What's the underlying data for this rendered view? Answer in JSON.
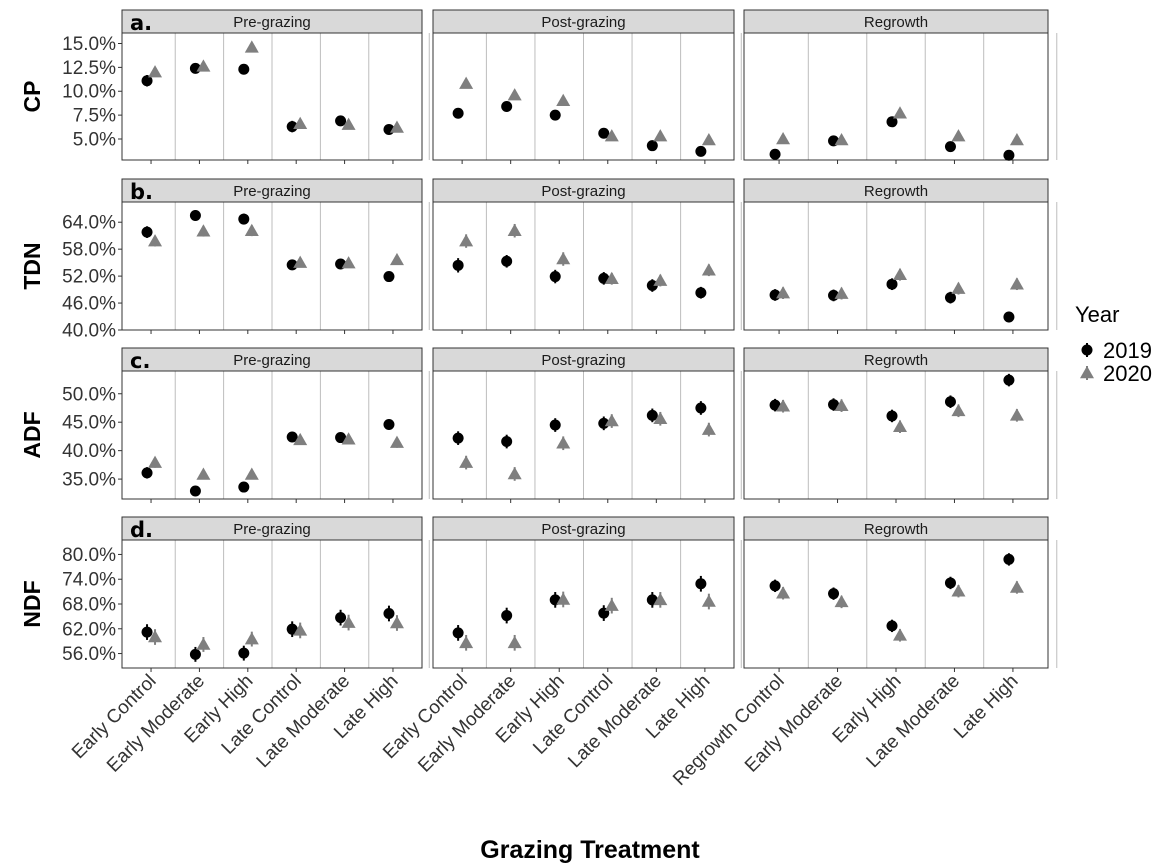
{
  "chart_data": {
    "type": "scatter",
    "xlabel": "Grazing Treatment",
    "legend": {
      "title": "Year",
      "position": "right",
      "series": [
        {
          "name": "2019",
          "color": "#000000",
          "marker": "circle"
        },
        {
          "name": "2020",
          "color": "#7f7f7f",
          "marker": "triangle"
        }
      ]
    },
    "facets": [
      "Pre-grazing",
      "Post-grazing",
      "Regrowth"
    ],
    "categories": [
      [
        "Early Control",
        "Early Moderate",
        "Early High",
        "Late Control",
        "Late Moderate",
        "Late High"
      ],
      [
        "Early Control",
        "Early Moderate",
        "Early High",
        "Late Control",
        "Late Moderate",
        "Late High"
      ],
      [
        "Regrowth Control",
        "Early Moderate",
        "Early High",
        "Late Moderate",
        "Late High"
      ]
    ],
    "grid": "vertical lines between categories",
    "rows": [
      {
        "tag": "a.",
        "ylabel": "CP",
        "ylim": [
          2.8,
          16.1
        ],
        "yticks": [
          5.0,
          7.5,
          10.0,
          12.5,
          15.0
        ],
        "ytick_labels": [
          "5.0%",
          "7.5%",
          "10.0%",
          "12.5%",
          "15.0%"
        ],
        "values": {
          "2019": [
            [
              11.1,
              12.4,
              12.3,
              6.3,
              6.9,
              6.0
            ],
            [
              7.7,
              8.4,
              7.5,
              5.6,
              4.3,
              3.7
            ],
            [
              3.4,
              4.8,
              6.8,
              4.2,
              3.3
            ]
          ],
          "2020": [
            [
              12.0,
              12.6,
              14.6,
              6.6,
              6.5,
              6.2
            ],
            [
              10.8,
              9.6,
              9.0,
              5.3,
              5.3,
              4.9
            ],
            [
              5.0,
              4.9,
              7.7,
              5.3,
              4.9
            ]
          ]
        },
        "errors": {
          "2019": [
            [
              0.6,
              0.4,
              0.5,
              0.6,
              0.5,
              0.5
            ],
            [
              0.5,
              0.5,
              0.5,
              0.5,
              0.5,
              0.5
            ],
            [
              0.3,
              0.3,
              0.3,
              0.3,
              0.3
            ]
          ],
          "2020": [
            [
              0.5,
              0.4,
              0.5,
              0.5,
              0.5,
              0.5
            ],
            [
              0.5,
              0.5,
              0.5,
              0.5,
              0.5,
              0.5
            ],
            [
              0.3,
              0.3,
              0.3,
              0.3,
              0.3
            ]
          ]
        }
      },
      {
        "tag": "b.",
        "ylabel": "TDN",
        "ylim": [
          40.0,
          68.5
        ],
        "yticks": [
          40.0,
          46.0,
          52.0,
          58.0,
          64.0
        ],
        "ytick_labels": [
          "40.0%",
          "46.0%",
          "52.0%",
          "58.0%",
          "64.0%"
        ],
        "values": {
          "2019": [
            [
              61.8,
              65.5,
              64.7,
              54.5,
              54.7,
              51.9
            ],
            [
              54.4,
              55.3,
              51.9,
              51.5,
              49.9,
              48.3
            ],
            [
              47.8,
              47.7,
              50.2,
              47.2,
              42.9
            ]
          ],
          "2020": [
            [
              59.8,
              62.0,
              62.1,
              55.0,
              54.9,
              55.6
            ],
            [
              59.8,
              62.1,
              55.8,
              51.4,
              51.0,
              53.3
            ],
            [
              48.2,
              48.1,
              52.3,
              49.2,
              50.2
            ]
          ]
        },
        "errors": {
          "2019": [
            [
              1.3,
              1.2,
              1.2,
              1.1,
              1.1,
              1.0
            ],
            [
              1.6,
              1.4,
              1.5,
              1.4,
              1.4,
              1.3
            ],
            [
              1.3,
              1.3,
              1.3,
              1.3,
              1.2
            ]
          ],
          "2020": [
            [
              1.2,
              1.2,
              1.2,
              1.0,
              1.0,
              1.0
            ],
            [
              1.5,
              1.5,
              1.5,
              1.3,
              1.3,
              1.3
            ],
            [
              1.3,
              1.3,
              1.3,
              1.3,
              1.3
            ]
          ]
        }
      },
      {
        "tag": "c.",
        "ylabel": "ADF",
        "ylim": [
          31.5,
          54.0
        ],
        "yticks": [
          35.0,
          40.0,
          45.0,
          50.0
        ],
        "ytick_labels": [
          "35.0%",
          "40.0%",
          "45.0%",
          "50.0%"
        ],
        "values": {
          "2019": [
            [
              36.1,
              32.9,
              33.6,
              42.4,
              42.3,
              44.6
            ],
            [
              42.2,
              41.6,
              44.5,
              44.8,
              46.2,
              47.5
            ],
            [
              48.0,
              48.1,
              46.1,
              48.6,
              52.4
            ]
          ],
          "2020": [
            [
              37.9,
              35.8,
              35.8,
              41.9,
              42.0,
              41.4
            ],
            [
              37.9,
              35.9,
              41.3,
              45.2,
              45.6,
              43.7
            ],
            [
              47.8,
              47.9,
              44.2,
              47.0,
              46.2
            ]
          ]
        },
        "errors": {
          "2019": [
            [
              1.0,
              0.8,
              0.8,
              0.9,
              0.8,
              0.9
            ],
            [
              1.2,
              1.2,
              1.2,
              1.2,
              1.2,
              1.2
            ],
            [
              1.1,
              1.1,
              1.1,
              1.1,
              1.1
            ]
          ],
          "2020": [
            [
              0.9,
              0.8,
              0.8,
              0.9,
              0.8,
              0.9
            ],
            [
              1.2,
              1.2,
              1.2,
              1.2,
              1.2,
              1.2
            ],
            [
              1.1,
              1.1,
              1.1,
              1.1,
              1.1
            ]
          ]
        }
      },
      {
        "tag": "d.",
        "ylabel": "NDF",
        "ylim": [
          52.5,
          83.5
        ],
        "yticks": [
          56.0,
          62.0,
          68.0,
          74.0,
          80.0
        ],
        "ytick_labels": [
          "56.0%",
          "62.0%",
          "68.0%",
          "74.0%",
          "80.0%"
        ],
        "values": {
          "2019": [
            [
              61.2,
              55.8,
              56.1,
              61.9,
              64.7,
              65.7
            ],
            [
              61.0,
              65.2,
              69.0,
              65.8,
              69.0,
              72.9
            ],
            [
              72.4,
              70.5,
              62.7,
              73.1,
              78.8
            ]
          ],
          "2020": [
            [
              60.0,
              58.2,
              59.5,
              61.6,
              63.5,
              63.4
            ],
            [
              58.6,
              58.6,
              69.1,
              67.6,
              69.0,
              68.6
            ],
            [
              70.6,
              68.5,
              60.4,
              71.1,
              72.0
            ]
          ]
        },
        "errors": {
          "2019": [
            [
              1.9,
              1.8,
              1.8,
              1.9,
              1.9,
              1.9
            ],
            [
              1.9,
              1.9,
              1.9,
              1.9,
              1.9,
              1.9
            ],
            [
              1.5,
              1.5,
              1.5,
              1.5,
              1.5
            ]
          ],
          "2020": [
            [
              1.9,
              1.8,
              1.8,
              1.9,
              1.9,
              1.9
            ],
            [
              1.9,
              1.9,
              1.9,
              1.9,
              1.9,
              1.9
            ],
            [
              1.5,
              1.5,
              1.5,
              1.5,
              1.5
            ]
          ]
        }
      }
    ]
  }
}
